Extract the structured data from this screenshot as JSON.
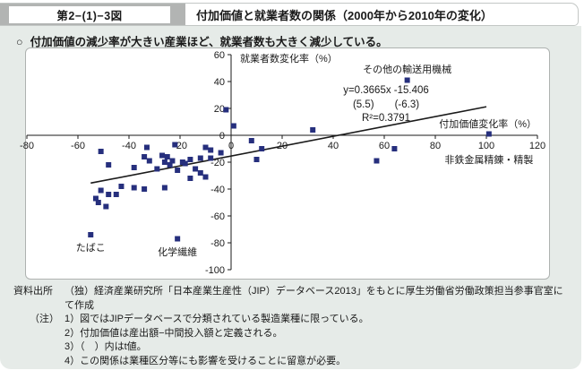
{
  "page": {
    "figure_label": "第2−(1)−3図",
    "title": "付加価値と就業者数の関係（2000年から2010年の変化）",
    "bullet_marker": "○",
    "bullet_text": "付加価値の減少率が大きい産業ほど、就業者数も大きく減少している。"
  },
  "chart_data": {
    "type": "scatter",
    "title": "",
    "xlabel": "付加価値変化率（%）",
    "ylabel": "就業者数変化率（%）",
    "xlim": [
      -80,
      120
    ],
    "ylim": [
      -100,
      60
    ],
    "xticks": [
      -80,
      -60,
      -40,
      -20,
      0,
      20,
      40,
      60,
      80,
      100,
      120
    ],
    "yticks": [
      60,
      40,
      20,
      0,
      -20,
      -40,
      -60,
      -80,
      -100
    ],
    "grid": false,
    "legend": "none",
    "marker_color": "#262f7d",
    "axis_color": "#1a1a1a",
    "points": [
      [
        -53,
        -47
      ],
      [
        -52,
        -50
      ],
      [
        -51,
        -41
      ],
      [
        -51,
        -12
      ],
      [
        -49,
        -53
      ],
      [
        -48,
        -44
      ],
      [
        -48,
        -22
      ],
      [
        -45,
        -44
      ],
      [
        -43,
        -38
      ],
      [
        -38,
        -39
      ],
      [
        -38,
        -24
      ],
      [
        -34,
        -40
      ],
      [
        -34,
        -16
      ],
      [
        -33,
        -9
      ],
      [
        -32,
        -19
      ],
      [
        -29,
        -25
      ],
      [
        -27,
        -15
      ],
      [
        -26,
        -39
      ],
      [
        -26,
        -20
      ],
      [
        -25,
        -16
      ],
      [
        -24,
        -22
      ],
      [
        -23,
        -19
      ],
      [
        -22,
        -7
      ],
      [
        -21,
        -26
      ],
      [
        -19,
        -20
      ],
      [
        -18,
        -21
      ],
      [
        -16,
        -32
      ],
      [
        -16,
        -18
      ],
      [
        -14,
        -25
      ],
      [
        -12,
        -28
      ],
      [
        -12,
        -17
      ],
      [
        -10,
        -31
      ],
      [
        -10,
        -9
      ],
      [
        -8,
        -11
      ],
      [
        -8,
        -17
      ],
      [
        -4,
        -13
      ],
      [
        -2,
        19
      ],
      [
        1,
        7
      ],
      [
        8,
        -4
      ],
      [
        10,
        -18
      ],
      [
        12,
        -10
      ],
      [
        32,
        4
      ],
      [
        57,
        -19
      ],
      [
        64,
        -10
      ]
    ],
    "labeled_points": [
      {
        "label": "その他の輸送用機械",
        "x": 69,
        "y": 41,
        "placement": "above"
      },
      {
        "label": "非鉄金属精錬・精製",
        "x": 101,
        "y": 1,
        "placement": "below-axis"
      },
      {
        "label": "たばこ",
        "x": -55,
        "y": -74,
        "placement": "below"
      },
      {
        "label": "化学繊維",
        "x": -21,
        "y": -77,
        "placement": "below"
      }
    ],
    "regression": {
      "equation": "y=0.3665x -15.406",
      "t_values": "(5.5)　　(-6.3)",
      "r_squared": "R²=0.3791",
      "slope": 0.3665,
      "intercept": -15.406,
      "line_x_range": [
        -55,
        100
      ]
    }
  },
  "notes": {
    "source_label": "資料出所",
    "source_text": "（独）経済産業研究所「日本産業生産性（JIP）データベース2013」をもとに厚生労働省労働政策担当参事官室にて作成",
    "note_label": "（注）",
    "items": [
      "1）図ではJIPデータベースで分類されている製造業種に限っている。",
      "2）付加価値は産出額−中間投入額と定義される。",
      "3）（　）内はt値。",
      "4）この関係は業種区分等にも影響を受けることに留意が必要。"
    ]
  }
}
